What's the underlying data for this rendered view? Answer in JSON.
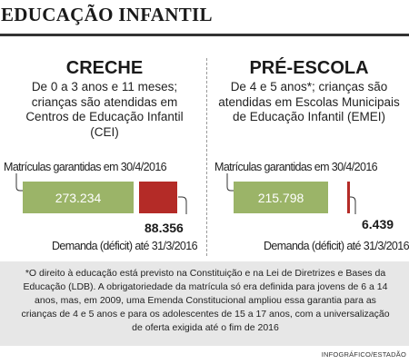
{
  "title": "EDUCAÇÃO INFANTIL",
  "colors": {
    "green": "#9bb468",
    "red": "#b42b27",
    "note_bg": "#e7e7e7"
  },
  "creche": {
    "heading": "CRECHE",
    "description": "De 0 a 3 anos e 11 meses; crianças são atendidas em Centros de Educação Infantil (CEI)",
    "matriculas_label": "Matrículas garantidas em 30/4/2016",
    "matriculas_value": "273.234",
    "demanda_value": "88.356",
    "demanda_label": "Demanda (déficit) até 31/3/2016"
  },
  "pre_escola": {
    "heading": "PRÉ-ESCOLA",
    "description": "De 4 e 5 anos*; crianças são atendidas em Escolas Municipais de Educação Infantil (EMEI)",
    "matriculas_label": "Matrículas garantidas em 30/4/2016",
    "matriculas_value": "215.798",
    "demanda_value": "6.439",
    "demanda_label": "Demanda (déficit) até 31/3/2016"
  },
  "footnote": "*O direito à educação está previsto na Constituição e na Lei de Diretrizes e Bases da Educação (LDB). A obrigatoriedade da matrícula só era definida para jovens de 6 a 14 anos, mas, em 2009, uma Emenda Constitucional ampliou essa garantia para as crianças de 4 e 5 anos e para os adolescentes de 15 a 17 anos, com a universalização de oferta exigida até o fim de 2016",
  "credit": "INFOGRÁFICO/ESTADÃO"
}
